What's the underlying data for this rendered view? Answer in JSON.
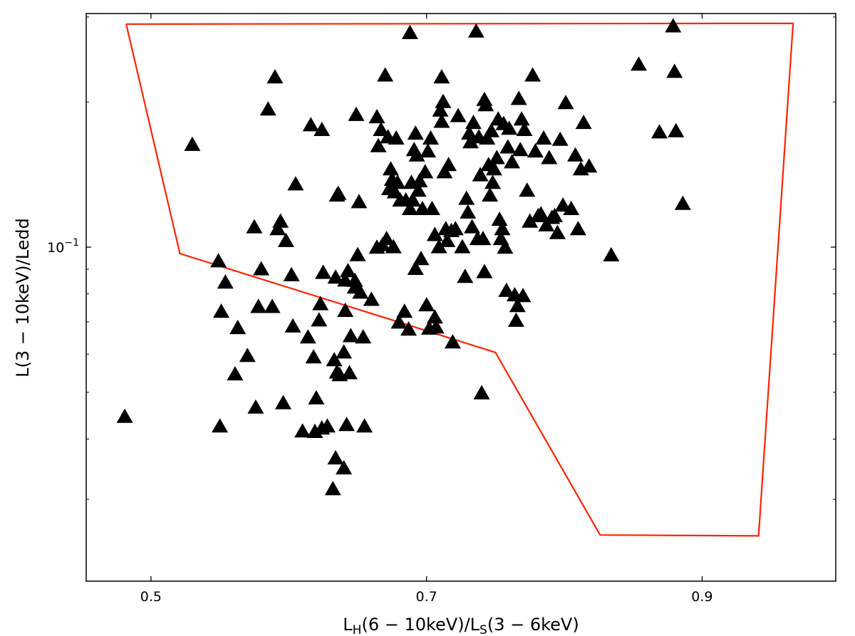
{
  "chart_data": {
    "type": "scatter",
    "title": "",
    "xlabel": "L_H(6 − 10keV)/L_S(3 − 6keV)",
    "xlabel_parts": {
      "main1": "L",
      "sub1": "H",
      "mid": "(6 − 10keV)/L",
      "sub2": "S",
      "end": "(3 − 6keV)"
    },
    "ylabel": "L(3 − 10keV)/Ledd",
    "x_scale": "linear",
    "y_scale": "log",
    "xlim": [
      0.453,
      0.997
    ],
    "ylim": [
      0.0203,
      0.305
    ],
    "x_ticks": [
      {
        "value": 0.5,
        "label": "0.5"
      },
      {
        "value": 0.7,
        "label": "0.7"
      },
      {
        "value": 0.9,
        "label": "0.9"
      }
    ],
    "y_major_ticks": [
      {
        "value": 0.1,
        "label_base": "10",
        "label_exp": "−1"
      }
    ],
    "y_minor_ticks": [
      0.03,
      0.04,
      0.05,
      0.06,
      0.07,
      0.08,
      0.09,
      0.2,
      0.3
    ],
    "grid": false,
    "legend": "none",
    "marker": "triangle",
    "marker_color": "#000000",
    "region_color": "#ff2200",
    "region": [
      [
        0.482,
        0.29
      ],
      [
        0.521,
        0.097
      ],
      [
        0.75,
        0.0605
      ],
      [
        0.826,
        0.0253
      ],
      [
        0.941,
        0.0252
      ],
      [
        0.966,
        0.291
      ],
      [
        0.482,
        0.29
      ]
    ],
    "points": [
      [
        0.481,
        0.0445
      ],
      [
        0.53,
        0.163
      ],
      [
        0.549,
        0.0935
      ],
      [
        0.55,
        0.0425
      ],
      [
        0.551,
        0.0735
      ],
      [
        0.554,
        0.0845
      ],
      [
        0.561,
        0.0545
      ],
      [
        0.563,
        0.068
      ],
      [
        0.57,
        0.0595
      ],
      [
        0.575,
        0.11
      ],
      [
        0.576,
        0.0465
      ],
      [
        0.578,
        0.0752
      ],
      [
        0.58,
        0.09
      ],
      [
        0.585,
        0.193
      ],
      [
        0.588,
        0.0752
      ],
      [
        0.59,
        0.225
      ],
      [
        0.592,
        0.109
      ],
      [
        0.594,
        0.113
      ],
      [
        0.596,
        0.0475
      ],
      [
        0.598,
        0.103
      ],
      [
        0.602,
        0.0875
      ],
      [
        0.603,
        0.0685
      ],
      [
        0.605,
        0.135
      ],
      [
        0.61,
        0.0415
      ],
      [
        0.614,
        0.065
      ],
      [
        0.616,
        0.179
      ],
      [
        0.618,
        0.0591
      ],
      [
        0.619,
        0.0414
      ],
      [
        0.62,
        0.0486
      ],
      [
        0.622,
        0.0705
      ],
      [
        0.623,
        0.0762
      ],
      [
        0.624,
        0.175
      ],
      [
        0.624,
        0.0421
      ],
      [
        0.625,
        0.0885
      ],
      [
        0.628,
        0.0425
      ],
      [
        0.632,
        0.0315
      ],
      [
        0.633,
        0.0583
      ],
      [
        0.634,
        0.0865
      ],
      [
        0.634,
        0.0365
      ],
      [
        0.635,
        0.055
      ],
      [
        0.635,
        0.128
      ],
      [
        0.636,
        0.129
      ],
      [
        0.637,
        0.0543
      ],
      [
        0.64,
        0.0348
      ],
      [
        0.64,
        0.0605
      ],
      [
        0.641,
        0.0853
      ],
      [
        0.641,
        0.0738
      ],
      [
        0.642,
        0.0428
      ],
      [
        0.643,
        0.0892
      ],
      [
        0.644,
        0.0548
      ],
      [
        0.645,
        0.0654
      ],
      [
        0.648,
        0.0825
      ],
      [
        0.648,
        0.0852
      ],
      [
        0.649,
        0.188
      ],
      [
        0.65,
        0.0963
      ],
      [
        0.651,
        0.124
      ],
      [
        0.652,
        0.0805
      ],
      [
        0.654,
        0.065
      ],
      [
        0.655,
        0.0425
      ],
      [
        0.66,
        0.0778
      ],
      [
        0.664,
        0.0998
      ],
      [
        0.664,
        0.186
      ],
      [
        0.665,
        0.162
      ],
      [
        0.667,
        0.175
      ],
      [
        0.668,
        0.101
      ],
      [
        0.67,
        0.227
      ],
      [
        0.671,
        0.104
      ],
      [
        0.672,
        0.169
      ],
      [
        0.673,
        0.132
      ],
      [
        0.674,
        0.145
      ],
      [
        0.675,
        0.138
      ],
      [
        0.676,
        0.1
      ],
      [
        0.677,
        0.13
      ],
      [
        0.678,
        0.168
      ],
      [
        0.679,
        0.136
      ],
      [
        0.68,
        0.0698
      ],
      [
        0.681,
        0.125
      ],
      [
        0.684,
        0.0735
      ],
      [
        0.685,
        0.125
      ],
      [
        0.687,
        0.0675
      ],
      [
        0.688,
        0.278
      ],
      [
        0.688,
        0.12
      ],
      [
        0.689,
        0.136
      ],
      [
        0.69,
        0.125
      ],
      [
        0.691,
        0.159
      ],
      [
        0.692,
        0.172
      ],
      [
        0.692,
        0.0902
      ],
      [
        0.693,
        0.155
      ],
      [
        0.694,
        0.131
      ],
      [
        0.695,
        0.137
      ],
      [
        0.696,
        0.0945
      ],
      [
        0.697,
        0.12
      ],
      [
        0.699,
        0.143
      ],
      [
        0.7,
        0.0758
      ],
      [
        0.701,
        0.158
      ],
      [
        0.702,
        0.0678
      ],
      [
        0.703,
        0.168
      ],
      [
        0.704,
        0.12
      ],
      [
        0.706,
        0.0715
      ],
      [
        0.706,
        0.106
      ],
      [
        0.707,
        0.0682
      ],
      [
        0.709,
        0.1
      ],
      [
        0.71,
        0.192
      ],
      [
        0.711,
        0.182
      ],
      [
        0.711,
        0.225
      ],
      [
        0.712,
        0.2
      ],
      [
        0.713,
        0.143
      ],
      [
        0.714,
        0.109
      ],
      [
        0.715,
        0.103
      ],
      [
        0.716,
        0.148
      ],
      [
        0.718,
        0.108
      ],
      [
        0.719,
        0.0635
      ],
      [
        0.721,
        0.109
      ],
      [
        0.723,
        0.187
      ],
      [
        0.726,
        0.1
      ],
      [
        0.728,
        0.0868
      ],
      [
        0.729,
        0.126
      ],
      [
        0.73,
        0.118
      ],
      [
        0.731,
        0.172
      ],
      [
        0.732,
        0.165
      ],
      [
        0.733,
        0.11
      ],
      [
        0.734,
        0.181
      ],
      [
        0.736,
        0.28
      ],
      [
        0.737,
        0.104
      ],
      [
        0.738,
        0.169
      ],
      [
        0.739,
        0.141
      ],
      [
        0.74,
        0.0498
      ],
      [
        0.741,
        0.104
      ],
      [
        0.742,
        0.202
      ],
      [
        0.742,
        0.0888
      ],
      [
        0.743,
        0.197
      ],
      [
        0.744,
        0.168
      ],
      [
        0.745,
        0.148
      ],
      [
        0.746,
        0.128
      ],
      [
        0.747,
        0.174
      ],
      [
        0.748,
        0.136
      ],
      [
        0.749,
        0.145
      ],
      [
        0.751,
        0.153
      ],
      [
        0.752,
        0.184
      ],
      [
        0.753,
        0.114
      ],
      [
        0.754,
        0.104
      ],
      [
        0.755,
        0.109
      ],
      [
        0.756,
        0.18
      ],
      [
        0.757,
        0.0998
      ],
      [
        0.758,
        0.0812
      ],
      [
        0.759,
        0.161
      ],
      [
        0.76,
        0.176
      ],
      [
        0.762,
        0.15
      ],
      [
        0.764,
        0.0795
      ],
      [
        0.765,
        0.0704
      ],
      [
        0.766,
        0.0755
      ],
      [
        0.767,
        0.203
      ],
      [
        0.768,
        0.159
      ],
      [
        0.769,
        0.184
      ],
      [
        0.77,
        0.0792
      ],
      [
        0.771,
        0.175
      ],
      [
        0.773,
        0.131
      ],
      [
        0.775,
        0.113
      ],
      [
        0.777,
        0.227
      ],
      [
        0.779,
        0.158
      ],
      [
        0.781,
        0.116
      ],
      [
        0.783,
        0.117
      ],
      [
        0.785,
        0.168
      ],
      [
        0.787,
        0.111
      ],
      [
        0.789,
        0.153
      ],
      [
        0.791,
        0.115
      ],
      [
        0.793,
        0.116
      ],
      [
        0.795,
        0.107
      ],
      [
        0.797,
        0.167
      ],
      [
        0.799,
        0.122
      ],
      [
        0.801,
        0.199
      ],
      [
        0.805,
        0.12
      ],
      [
        0.808,
        0.155
      ],
      [
        0.81,
        0.109
      ],
      [
        0.812,
        0.145
      ],
      [
        0.814,
        0.181
      ],
      [
        0.818,
        0.147
      ],
      [
        0.834,
        0.0962
      ],
      [
        0.854,
        0.239
      ],
      [
        0.869,
        0.173
      ],
      [
        0.879,
        0.287
      ],
      [
        0.88,
        0.231
      ],
      [
        0.881,
        0.174
      ],
      [
        0.886,
        0.123
      ]
    ]
  }
}
